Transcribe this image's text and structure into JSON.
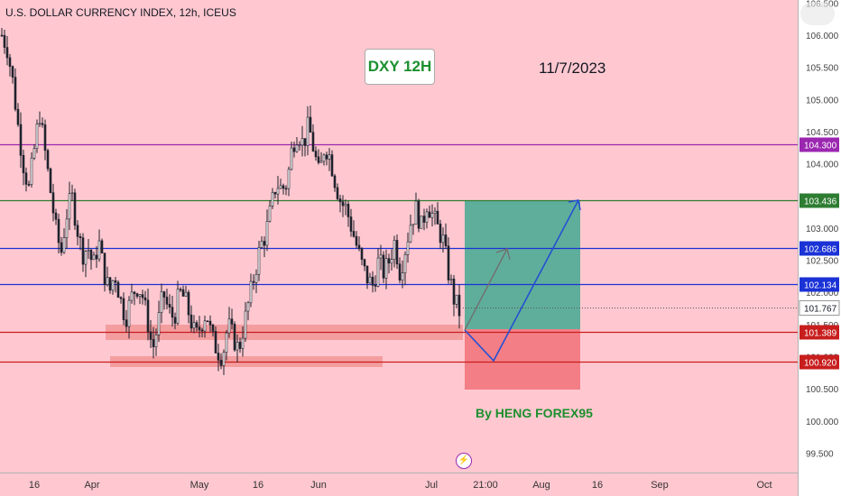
{
  "header": {
    "title": "U.S. DOLLAR CURRENCY INDEX, 12h, ICEUS"
  },
  "annotations": {
    "badge": "DXY 12H",
    "date": "11/7/2023",
    "author": "By HENG FOREX95"
  },
  "colors": {
    "background": "#ffc8d0",
    "candle": "#1e222d",
    "purple_line": "#9b27b0",
    "green_line": "#2e7d32",
    "blue_line": "#1a32d6",
    "red_line": "#c81e1e",
    "profit_zone": "#5fae9b",
    "loss_zone": "#f47e86",
    "arrow": "#2451d1",
    "arrow_gray": "#707070"
  },
  "chart_data": {
    "type": "candlestick",
    "y_axis": {
      "ylim": [
        99.0,
        106.55
      ],
      "ticks": [
        "99.500",
        "100.000",
        "100.500",
        "101.000",
        "101.500",
        "102.000",
        "102.500",
        "103.000",
        "103.500",
        "104.000",
        "104.500",
        "105.000",
        "105.500",
        "106.000",
        "106.500"
      ]
    },
    "x_axis": {
      "ticks": [
        "16",
        "Apr",
        "May",
        "16",
        "Jun",
        "Jul",
        "21:00",
        "Aug",
        "16",
        "Sep",
        "Oct"
      ]
    },
    "levels": [
      {
        "label": "104.300",
        "value": 104.3,
        "color": "#9b27b0"
      },
      {
        "label": "103.436",
        "value": 103.436,
        "color": "#2e7d32"
      },
      {
        "label": "102.686",
        "value": 102.686,
        "color": "#1a32d6"
      },
      {
        "label": "102.134",
        "value": 102.134,
        "color": "#1a32d6"
      },
      {
        "label": "101.389",
        "value": 101.389,
        "color": "#c81e1e"
      },
      {
        "label": "100.920",
        "value": 100.92,
        "color": "#c81e1e"
      }
    ],
    "current_price": {
      "label": "101.767",
      "value": 101.767
    },
    "position": {
      "entry": 101.5,
      "target": 103.436,
      "stop": 100.5
    },
    "path": [
      106.0,
      105.8,
      105.3,
      104.6,
      104.0,
      103.6,
      104.2,
      104.8,
      104.2,
      103.6,
      103.0,
      102.6,
      103.2,
      103.5,
      103.0,
      102.6,
      102.7,
      102.4,
      102.8,
      102.3,
      102.0,
      102.3,
      101.9,
      101.6,
      101.9,
      102.1,
      102.0,
      101.6,
      101.1,
      101.5,
      102.0,
      101.7,
      101.6,
      102.0,
      101.9,
      101.6,
      101.3,
      101.5,
      101.7,
      101.3,
      101.1,
      101.0,
      101.5,
      101.3,
      101.1,
      101.5,
      101.9,
      102.3,
      102.7,
      102.9,
      103.3,
      103.7,
      103.6,
      103.7,
      104.3,
      104.5,
      104.3,
      104.6,
      104.2,
      103.8,
      104.3,
      104.1,
      103.7,
      103.4,
      103.3,
      103.0,
      102.7,
      102.4,
      102.2,
      102.1,
      102.5,
      102.3,
      102.5,
      102.8,
      102.3,
      102.7,
      103.1,
      103.3,
      103.0,
      103.4,
      103.2,
      103.0,
      102.8,
      102.3,
      101.9,
      101.7
    ]
  }
}
